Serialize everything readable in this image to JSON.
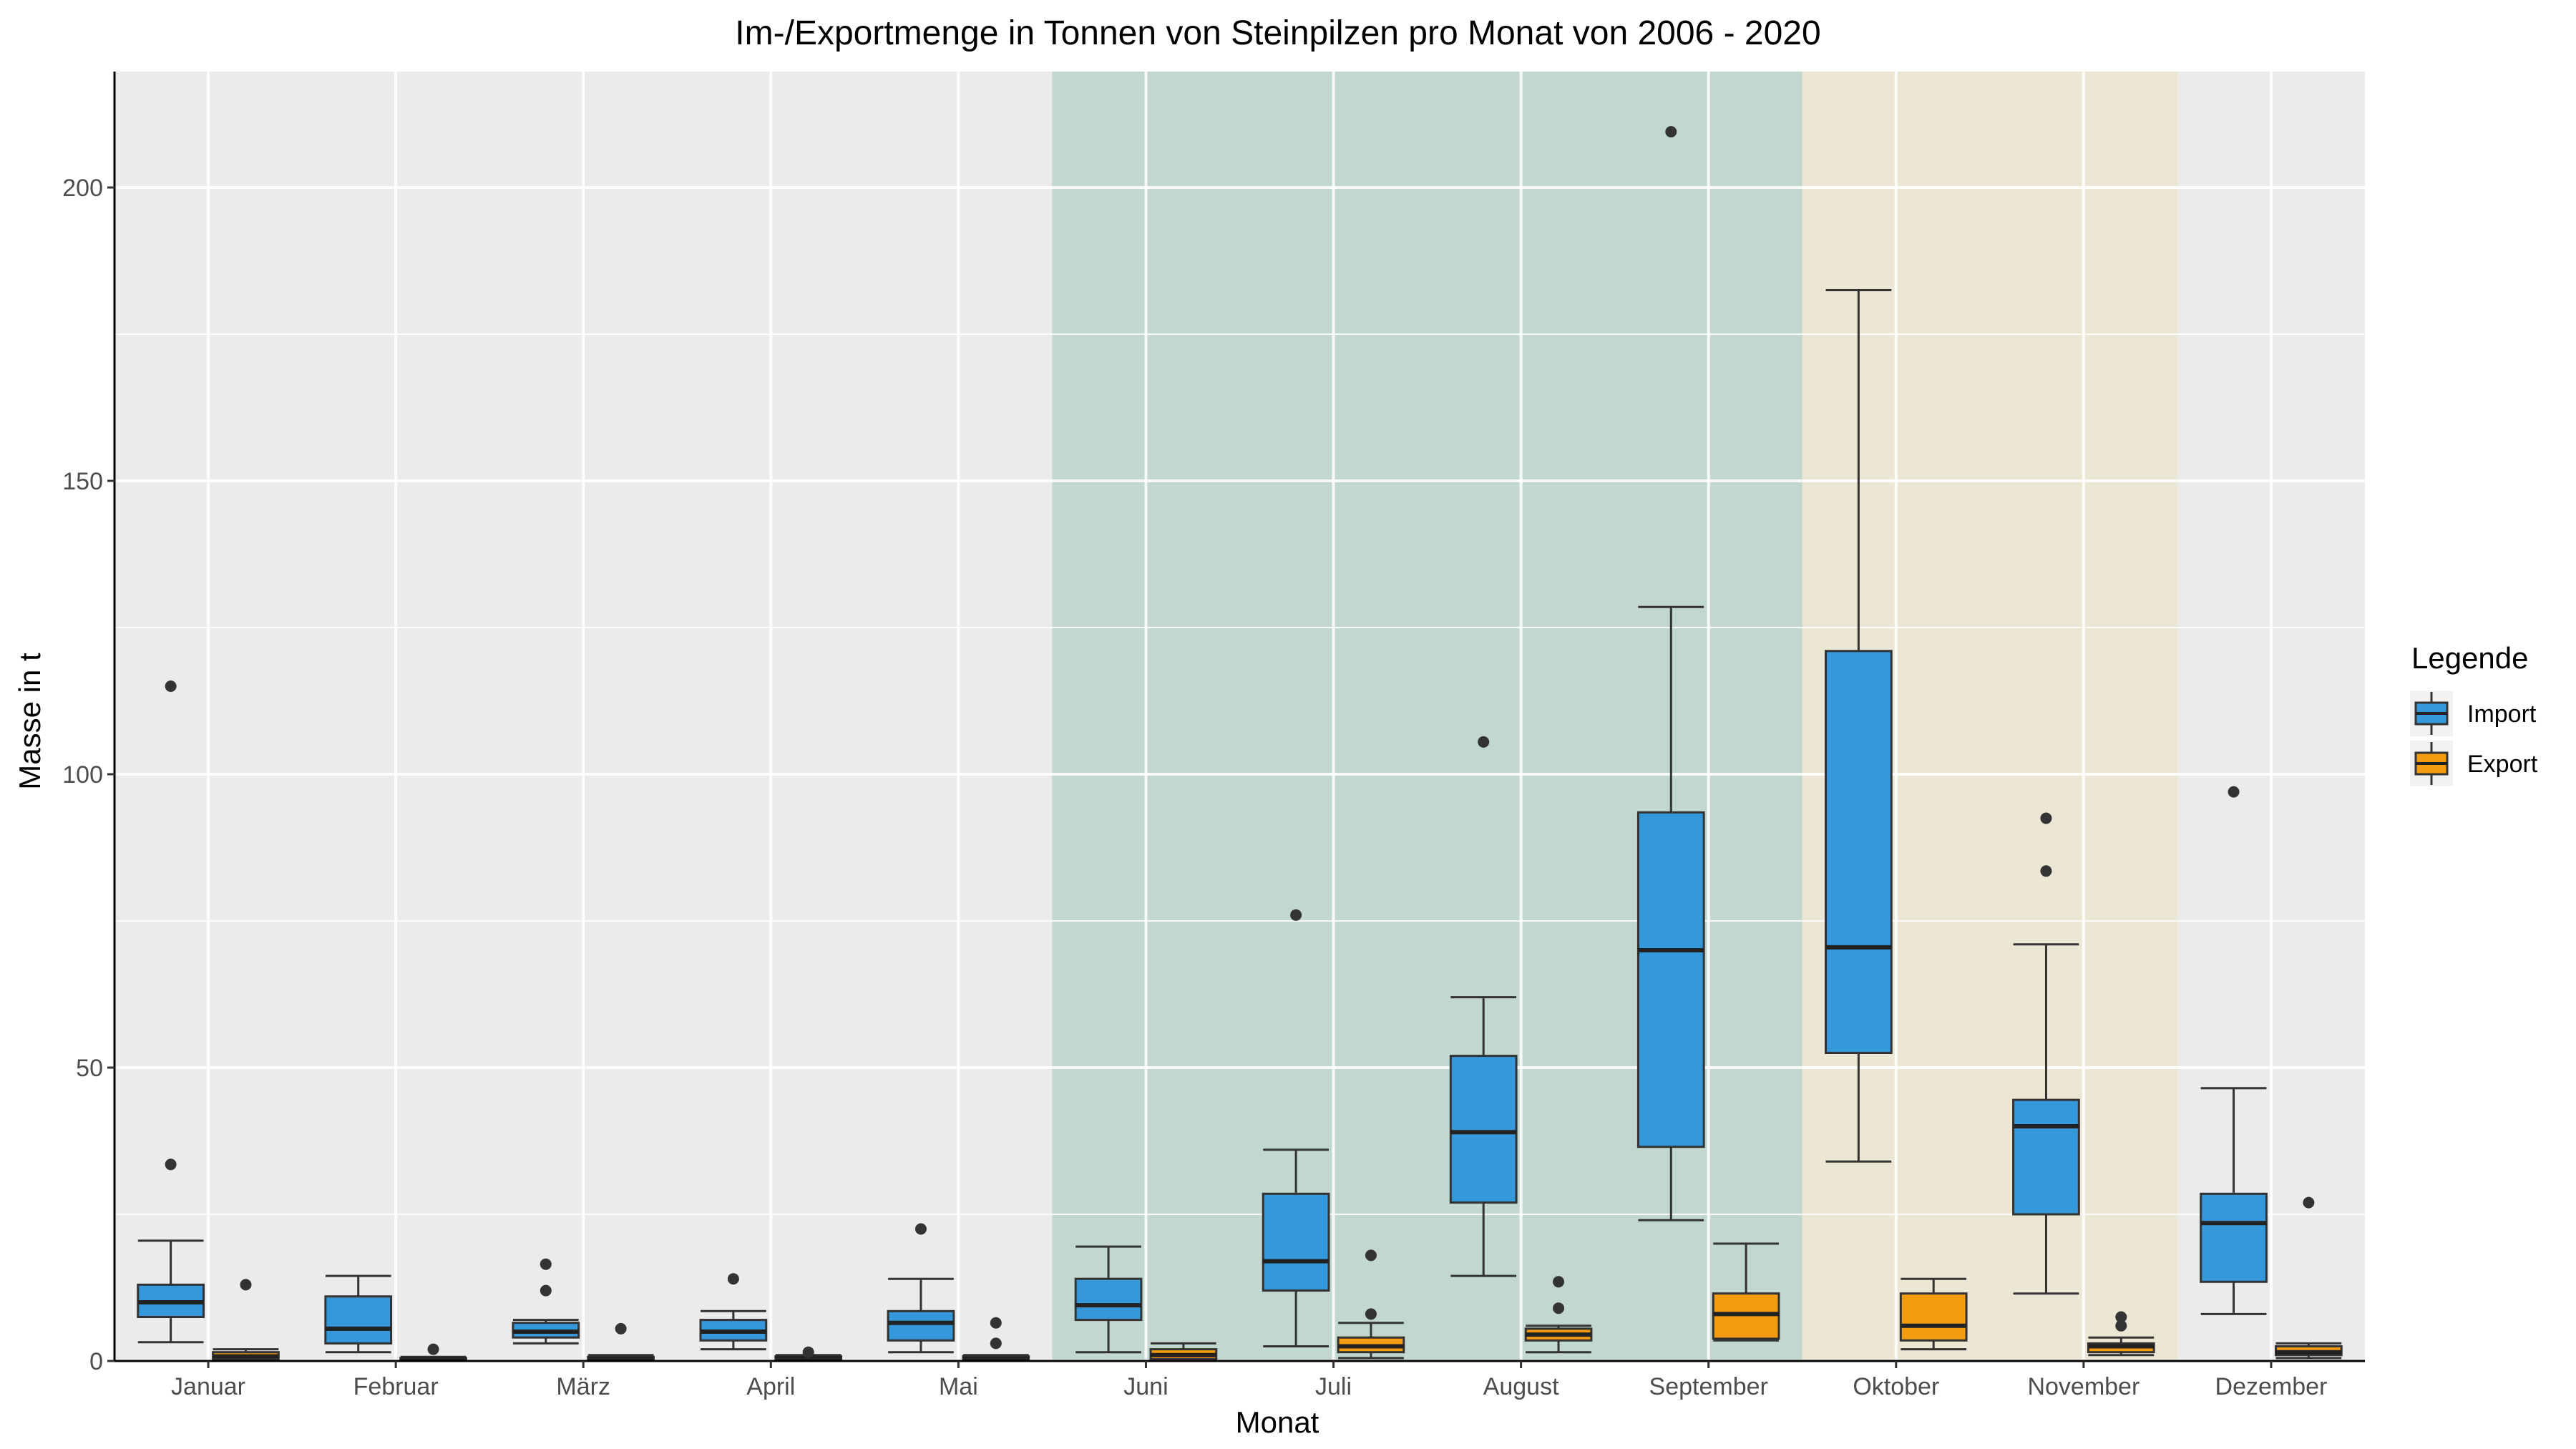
{
  "chart_data": {
    "type": "boxplot",
    "title": "Im-/Exportmenge in Tonnen von Steinpilzen pro Monat von 2006 - 2020",
    "xlabel": "Monat",
    "ylabel": "Masse in t",
    "ylim": [
      0,
      220
    ],
    "yticks": [
      0,
      50,
      100,
      150,
      200
    ],
    "grid": true,
    "legend_position": "right",
    "legend_title": "Legende",
    "categories": [
      "Januar",
      "Februar",
      "März",
      "April",
      "Mai",
      "Juni",
      "Juli",
      "August",
      "September",
      "Oktober",
      "November",
      "Dezember"
    ],
    "shading": [
      {
        "from": "Juni",
        "to": "September",
        "color": "#c2d7cd"
      },
      {
        "from": "Oktober",
        "to": "November",
        "color": "#ece7d4"
      }
    ],
    "series": [
      {
        "name": "Import",
        "color": "#3498db",
        "boxes": [
          {
            "min": 3.2,
            "q1": 7.5,
            "median": 10,
            "q3": 13,
            "max": 20.5,
            "outliers": [
              33.5,
              115
            ]
          },
          {
            "min": 1.5,
            "q1": 3,
            "median": 5.5,
            "q3": 11,
            "max": 14.5,
            "outliers": []
          },
          {
            "min": 3,
            "q1": 4,
            "median": 5,
            "q3": 6.5,
            "max": 7,
            "outliers": [
              12,
              16.5
            ]
          },
          {
            "min": 2,
            "q1": 3.5,
            "median": 5,
            "q3": 7,
            "max": 8.5,
            "outliers": [
              14
            ]
          },
          {
            "min": 1.5,
            "q1": 3.5,
            "median": 6.5,
            "q3": 8.5,
            "max": 14,
            "outliers": [
              22.5
            ]
          },
          {
            "min": 1.5,
            "q1": 7,
            "median": 9.5,
            "q3": 14,
            "max": 19.5,
            "outliers": []
          },
          {
            "min": 2.5,
            "q1": 12,
            "median": 17,
            "q3": 28.5,
            "max": 36,
            "outliers": [
              76
            ]
          },
          {
            "min": 14.5,
            "q1": 27,
            "median": 39,
            "q3": 52,
            "max": 62,
            "outliers": [
              105.5
            ]
          },
          {
            "min": 24,
            "q1": 36.5,
            "median": 70,
            "q3": 93.5,
            "max": 128.5,
            "outliers": [
              209.5
            ]
          },
          {
            "min": 34,
            "q1": 52.5,
            "median": 70.5,
            "q3": 121,
            "max": 182.5,
            "outliers": []
          },
          {
            "min": 11.5,
            "q1": 25,
            "median": 40,
            "q3": 44.5,
            "max": 71,
            "outliers": [
              83.5,
              92.5
            ]
          },
          {
            "min": 8,
            "q1": 13.5,
            "median": 23.5,
            "q3": 28.5,
            "max": 46.5,
            "outliers": [
              97
            ]
          }
        ]
      },
      {
        "name": "Export",
        "color": "#f39c12",
        "boxes": [
          {
            "min": 0,
            "q1": 0.3,
            "median": 0.8,
            "q3": 1.5,
            "max": 2,
            "outliers": [
              13
            ]
          },
          {
            "min": 0,
            "q1": 0.1,
            "median": 0.3,
            "q3": 0.5,
            "max": 0.7,
            "outliers": [
              2
            ]
          },
          {
            "min": 0,
            "q1": 0.2,
            "median": 0.4,
            "q3": 0.7,
            "max": 1,
            "outliers": [
              5.5
            ]
          },
          {
            "min": 0,
            "q1": 0.2,
            "median": 0.5,
            "q3": 0.8,
            "max": 1,
            "outliers": [
              1.5
            ]
          },
          {
            "min": 0,
            "q1": 0.2,
            "median": 0.4,
            "q3": 0.8,
            "max": 1,
            "outliers": [
              3,
              6.5
            ]
          },
          {
            "min": 0,
            "q1": 0.3,
            "median": 1,
            "q3": 2,
            "max": 3,
            "outliers": []
          },
          {
            "min": 0.5,
            "q1": 1.5,
            "median": 2.5,
            "q3": 4,
            "max": 6.5,
            "outliers": [
              8,
              18
            ]
          },
          {
            "min": 1.5,
            "q1": 3.5,
            "median": 4.5,
            "q3": 5.5,
            "max": 6,
            "outliers": [
              9,
              13.5
            ]
          },
          {
            "min": 3.5,
            "q1": 3.8,
            "median": 8,
            "q3": 11.5,
            "max": 20,
            "outliers": []
          },
          {
            "min": 2,
            "q1": 3.5,
            "median": 6,
            "q3": 11.5,
            "max": 14,
            "outliers": []
          },
          {
            "min": 1,
            "q1": 1.5,
            "median": 2.5,
            "q3": 3,
            "max": 4,
            "outliers": [
              6,
              7.5
            ]
          },
          {
            "min": 0.5,
            "q1": 1,
            "median": 1.5,
            "q3": 2.5,
            "max": 3,
            "outliers": [
              27
            ]
          }
        ]
      }
    ]
  }
}
